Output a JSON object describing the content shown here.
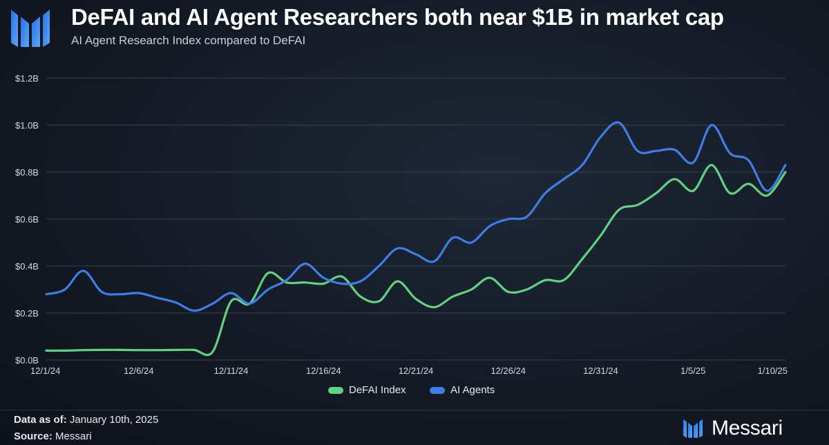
{
  "header": {
    "title": "DeFAI and AI Agent Researchers both near $1B in market cap",
    "subtitle": "AI Agent Research Index compared to DeFAI"
  },
  "footer": {
    "data_as_of_label": "Data as of:",
    "data_as_of_value": "January 10th, 2025",
    "source_label": "Source:",
    "source_value": "Messari",
    "brand": "Messari"
  },
  "colors": {
    "defai": "#5fd37f",
    "agents": "#3f7ee8",
    "grid": "#39414f",
    "axis_text": "#d4d9e1"
  },
  "chart_data": {
    "type": "line",
    "x_start": "12/1/24",
    "x_end": "1/10/25",
    "x_ticks": [
      "12/1/24",
      "12/6/24",
      "12/11/24",
      "12/16/24",
      "12/21/24",
      "12/26/24",
      "12/31/24",
      "1/5/25",
      "1/10/25"
    ],
    "y_ticks": [
      "$0.0B",
      "$0.2B",
      "$0.4B",
      "$0.6B",
      "$0.8B",
      "$1.0B",
      "$1.2B"
    ],
    "ylim": [
      0,
      1.2
    ],
    "legend_position": "bottom-center",
    "series": [
      {
        "name": "DeFAI Index",
        "points": [
          [
            "12/1/24",
            0.04
          ],
          [
            "12/2/24",
            0.04
          ],
          [
            "12/3/24",
            0.042
          ],
          [
            "12/4/24",
            0.043
          ],
          [
            "12/5/24",
            0.043
          ],
          [
            "12/6/24",
            0.042
          ],
          [
            "12/7/24",
            0.042
          ],
          [
            "12/8/24",
            0.043
          ],
          [
            "12/9/24",
            0.043
          ],
          [
            "12/10/24",
            0.035
          ],
          [
            "12/11/24",
            0.25
          ],
          [
            "12/12/24",
            0.24
          ],
          [
            "12/13/24",
            0.37
          ],
          [
            "12/14/24",
            0.33
          ],
          [
            "12/15/24",
            0.33
          ],
          [
            "12/16/24",
            0.325
          ],
          [
            "12/17/24",
            0.355
          ],
          [
            "12/18/24",
            0.27
          ],
          [
            "12/19/24",
            0.25
          ],
          [
            "12/20/24",
            0.335
          ],
          [
            "12/21/24",
            0.26
          ],
          [
            "12/22/24",
            0.225
          ],
          [
            "12/23/24",
            0.27
          ],
          [
            "12/24/24",
            0.3
          ],
          [
            "12/25/24",
            0.35
          ],
          [
            "12/26/24",
            0.29
          ],
          [
            "12/27/24",
            0.3
          ],
          [
            "12/28/24",
            0.34
          ],
          [
            "12/29/24",
            0.34
          ],
          [
            "12/30/24",
            0.43
          ],
          [
            "12/31/24",
            0.53
          ],
          [
            "1/1/25",
            0.64
          ],
          [
            "1/2/25",
            0.66
          ],
          [
            "1/3/25",
            0.71
          ],
          [
            "1/4/25",
            0.77
          ],
          [
            "1/5/25",
            0.72
          ],
          [
            "1/6/25",
            0.83
          ],
          [
            "1/7/25",
            0.71
          ],
          [
            "1/8/25",
            0.75
          ],
          [
            "1/9/25",
            0.7
          ],
          [
            "1/10/25",
            0.8
          ]
        ]
      },
      {
        "name": "AI Agents",
        "points": [
          [
            "12/1/24",
            0.28
          ],
          [
            "12/2/24",
            0.3
          ],
          [
            "12/3/24",
            0.38
          ],
          [
            "12/4/24",
            0.29
          ],
          [
            "12/5/24",
            0.28
          ],
          [
            "12/6/24",
            0.285
          ],
          [
            "12/7/24",
            0.265
          ],
          [
            "12/8/24",
            0.245
          ],
          [
            "12/9/24",
            0.21
          ],
          [
            "12/10/24",
            0.24
          ],
          [
            "12/11/24",
            0.285
          ],
          [
            "12/12/24",
            0.24
          ],
          [
            "12/13/24",
            0.3
          ],
          [
            "12/14/24",
            0.34
          ],
          [
            "12/15/24",
            0.41
          ],
          [
            "12/16/24",
            0.35
          ],
          [
            "12/17/24",
            0.325
          ],
          [
            "12/18/24",
            0.335
          ],
          [
            "12/19/24",
            0.4
          ],
          [
            "12/20/24",
            0.475
          ],
          [
            "12/21/24",
            0.45
          ],
          [
            "12/22/24",
            0.42
          ],
          [
            "12/23/24",
            0.52
          ],
          [
            "12/24/24",
            0.5
          ],
          [
            "12/25/24",
            0.57
          ],
          [
            "12/26/24",
            0.6
          ],
          [
            "12/27/24",
            0.61
          ],
          [
            "12/28/24",
            0.71
          ],
          [
            "12/29/24",
            0.77
          ],
          [
            "12/30/24",
            0.83
          ],
          [
            "12/31/24",
            0.95
          ],
          [
            "1/1/25",
            1.01
          ],
          [
            "1/2/25",
            0.89
          ],
          [
            "1/3/25",
            0.89
          ],
          [
            "1/4/25",
            0.895
          ],
          [
            "1/5/25",
            0.84
          ],
          [
            "1/6/25",
            1.0
          ],
          [
            "1/7/25",
            0.88
          ],
          [
            "1/8/25",
            0.85
          ],
          [
            "1/9/25",
            0.72
          ],
          [
            "1/10/25",
            0.83
          ]
        ]
      }
    ]
  }
}
